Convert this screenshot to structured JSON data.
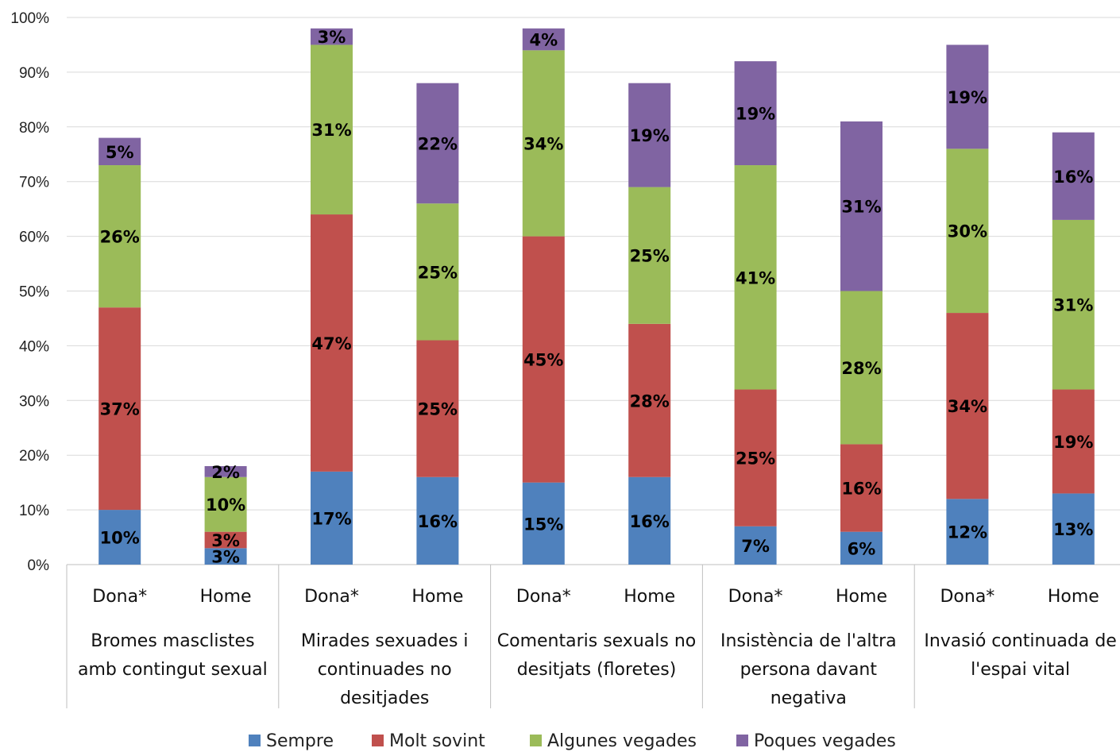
{
  "chart_data": {
    "type": "bar",
    "stacked": true,
    "ylim": [
      0,
      100
    ],
    "yticks": [
      "0%",
      "10%",
      "20%",
      "30%",
      "40%",
      "50%",
      "60%",
      "70%",
      "80%",
      "90%",
      "100%"
    ],
    "grid": true,
    "legend_position": "bottom",
    "groups": [
      {
        "label": [
          "Bromes masclistes",
          "amb contingut sexual"
        ]
      },
      {
        "label": [
          "Mirades sexuades i",
          "continuades no",
          "desitjades"
        ]
      },
      {
        "label": [
          "Comentaris sexuals no",
          "desitjats (floretes)"
        ]
      },
      {
        "label": [
          "Insistència de l'altra",
          "persona davant",
          "negativa"
        ]
      },
      {
        "label": [
          "Invasió continuada de",
          "l'espai vital"
        ]
      }
    ],
    "categories": [
      "Dona*",
      "Home",
      "Dona*",
      "Home",
      "Dona*",
      "Home",
      "Dona*",
      "Home",
      "Dona*",
      "Home"
    ],
    "series": [
      {
        "name": "Sempre",
        "color": "#4F81BD",
        "values": [
          10,
          3,
          17,
          16,
          15,
          16,
          7,
          6,
          12,
          13
        ]
      },
      {
        "name": "Molt sovint",
        "color": "#C0504D",
        "values": [
          37,
          3,
          47,
          25,
          45,
          28,
          25,
          16,
          34,
          19
        ]
      },
      {
        "name": "Algunes vegades",
        "color": "#9BBB59",
        "values": [
          26,
          10,
          31,
          25,
          34,
          25,
          41,
          28,
          30,
          31
        ]
      },
      {
        "name": "Poques vegades",
        "color": "#8064A2",
        "values": [
          5,
          2,
          3,
          22,
          4,
          19,
          19,
          31,
          19,
          16
        ]
      }
    ]
  }
}
